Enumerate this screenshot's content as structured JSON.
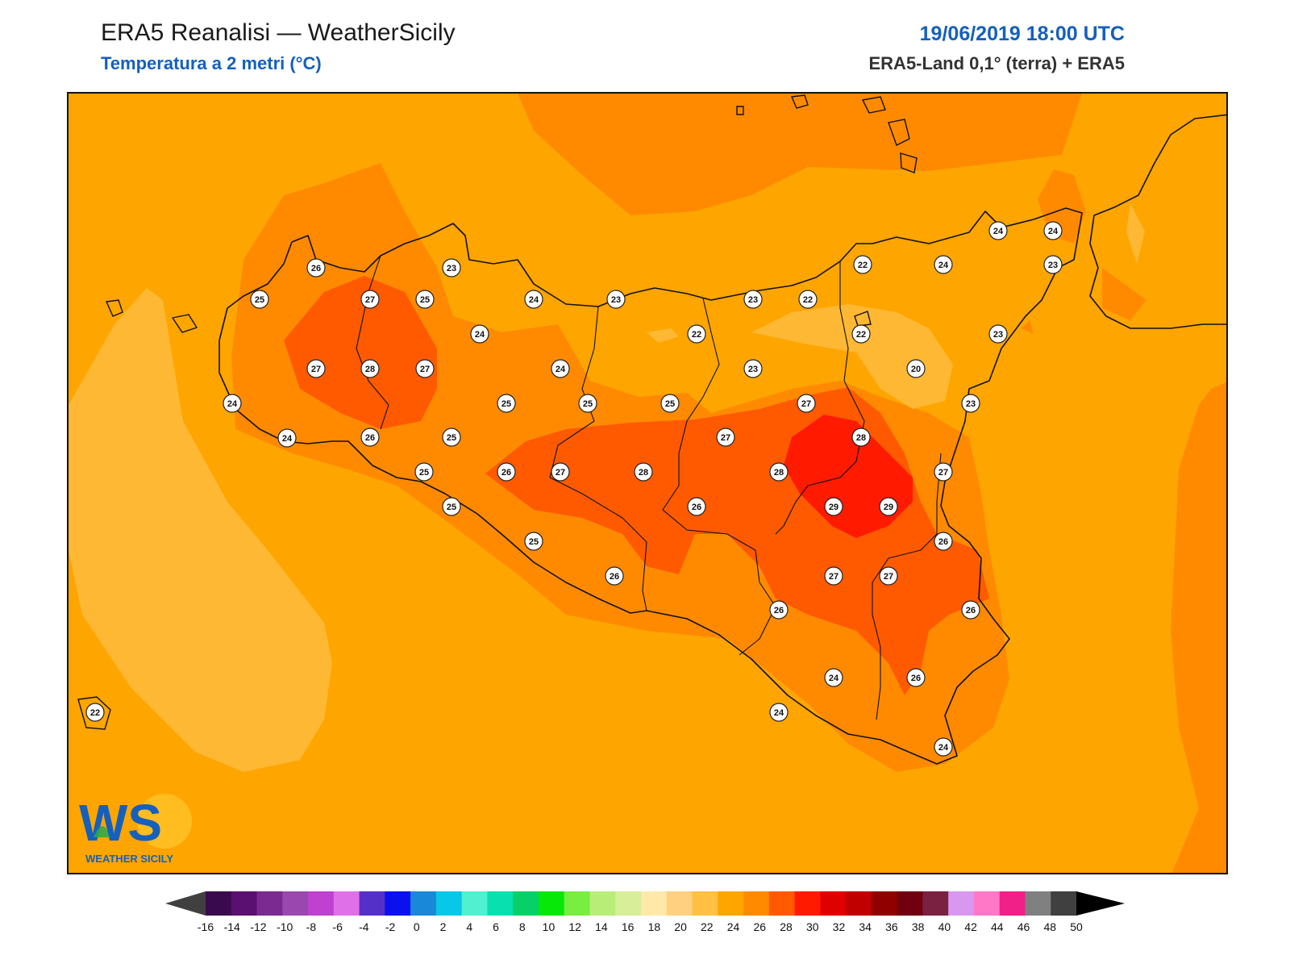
{
  "header": {
    "title": "ERA5 Reanalisi — WeatherSicily",
    "subtitle": "Temperatura a 2 metri (°C)",
    "datetime": "19/06/2019 18:00 UTC",
    "source": "ERA5-Land 0,1° (terra) + ERA5"
  },
  "logo": {
    "mark": "WS",
    "name": "WEATHER SICILY"
  },
  "colors": {
    "t18": "#ffc44a",
    "t20": "#ffb833",
    "t22": "#ffa500",
    "t24": "#ff8a00",
    "t26": "#ff5a00",
    "t28": "#ff1a00",
    "coast": "#111111",
    "brand_blue": "#1560bd"
  },
  "stations": [
    {
      "t": "26"
    },
    {
      "t": "23"
    },
    {
      "t": "25"
    },
    {
      "t": "27"
    },
    {
      "t": "25"
    },
    {
      "t": "24"
    },
    {
      "t": "23"
    },
    {
      "t": "24"
    },
    {
      "t": "27"
    },
    {
      "t": "28"
    },
    {
      "t": "27"
    },
    {
      "t": "24"
    },
    {
      "t": "24"
    },
    {
      "t": "26"
    },
    {
      "t": "25"
    },
    {
      "t": "24"
    },
    {
      "t": "25"
    },
    {
      "t": "25"
    },
    {
      "t": "25"
    },
    {
      "t": "26"
    },
    {
      "t": "27"
    },
    {
      "t": "28"
    },
    {
      "t": "27"
    },
    {
      "t": "25"
    },
    {
      "t": "25"
    },
    {
      "t": "26"
    },
    {
      "t": "26"
    },
    {
      "t": "25"
    },
    {
      "t": "22"
    },
    {
      "t": "23"
    },
    {
      "t": "22"
    },
    {
      "t": "22"
    },
    {
      "t": "24"
    },
    {
      "t": "22"
    },
    {
      "t": "23"
    },
    {
      "t": "23"
    },
    {
      "t": "24"
    },
    {
      "t": "24"
    },
    {
      "t": "23"
    },
    {
      "t": "20"
    },
    {
      "t": "23"
    },
    {
      "t": "27"
    },
    {
      "t": "28"
    },
    {
      "t": "27"
    },
    {
      "t": "28"
    },
    {
      "t": "29"
    },
    {
      "t": "29"
    },
    {
      "t": "26"
    },
    {
      "t": "27"
    },
    {
      "t": "27"
    },
    {
      "t": "26"
    },
    {
      "t": "26"
    },
    {
      "t": "24"
    },
    {
      "t": "26"
    },
    {
      "t": "24"
    },
    {
      "t": "24"
    },
    {
      "t": "22"
    }
  ],
  "colorbar": {
    "labels": [
      "-16",
      "-14",
      "-12",
      "-10",
      "-8",
      "-6",
      "-4",
      "-2",
      "0",
      "2",
      "4",
      "6",
      "8",
      "10",
      "12",
      "14",
      "16",
      "18",
      "20",
      "22",
      "24",
      "26",
      "28",
      "30",
      "32",
      "34",
      "36",
      "38",
      "40",
      "42",
      "44",
      "46",
      "48",
      "50"
    ],
    "colors": [
      "#3a0a4e",
      "#5a1070",
      "#7a2a90",
      "#9a48b0",
      "#c040d0",
      "#e070e8",
      "#5530c8",
      "#0a10ee",
      "#1a88d8",
      "#08c8e8",
      "#50f0d0",
      "#08e0b0",
      "#08d068",
      "#08e808",
      "#78ee40",
      "#b8ee78",
      "#d8ee98",
      "#ffe8a8",
      "#ffd080",
      "#ffc044",
      "#ffa500",
      "#ff8a00",
      "#ff5a00",
      "#ff1a00",
      "#e00000",
      "#c00000",
      "#900000",
      "#700010",
      "#7a2040",
      "#d898f0",
      "#ff78c8",
      "#f02088",
      "#808080",
      "#404040"
    ],
    "under_color": "#404040",
    "over_color": "#000000"
  }
}
